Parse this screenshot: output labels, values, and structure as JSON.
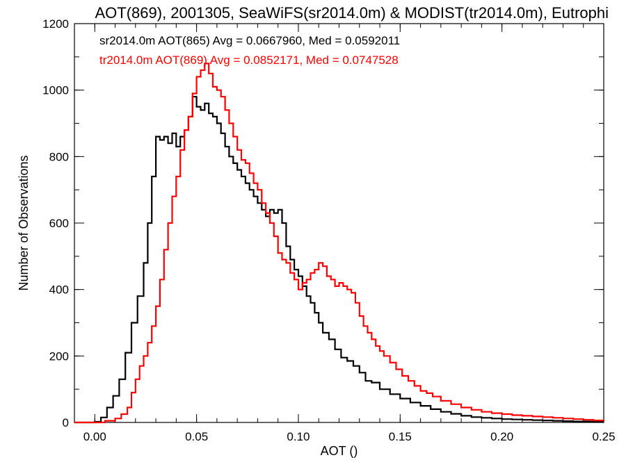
{
  "chart_data": {
    "type": "line",
    "title": "AOT(869), 2001305, SeaWiFS(sr2014.0m) & MODIST(tr2014.0m), Eutrophi",
    "xlabel": "AOT ()",
    "ylabel": "Number of Observations",
    "xlim": [
      -0.01,
      0.25
    ],
    "ylim": [
      0,
      1200
    ],
    "x_ticks": [
      0.0,
      0.05,
      0.1,
      0.15,
      0.2,
      0.25
    ],
    "x_tick_labels": [
      "0.00",
      "0.05",
      "0.10",
      "0.15",
      "0.20",
      "0.25"
    ],
    "y_ticks": [
      0,
      200,
      400,
      600,
      800,
      1000,
      1200
    ],
    "y_tick_labels": [
      "0",
      "200",
      "400",
      "600",
      "800",
      "1000",
      "1200"
    ],
    "grid": false,
    "annotations": [
      "sr2014.0m AOT(865) Avg = 0.0667960, Med = 0.0592011",
      "tr2014.0m AOT(869) Avg = 0.0852171, Med = 0.0747528"
    ],
    "series": [
      {
        "color": "#000000",
        "step": "histogram",
        "points": [
          [
            -0.01,
            0
          ],
          [
            0.0,
            2
          ],
          [
            0.003,
            15
          ],
          [
            0.006,
            45
          ],
          [
            0.009,
            80
          ],
          [
            0.012,
            130
          ],
          [
            0.015,
            210
          ],
          [
            0.018,
            300
          ],
          [
            0.021,
            380
          ],
          [
            0.024,
            480
          ],
          [
            0.026,
            600
          ],
          [
            0.028,
            740
          ],
          [
            0.03,
            860
          ],
          [
            0.032,
            850
          ],
          [
            0.034,
            860
          ],
          [
            0.036,
            840
          ],
          [
            0.038,
            870
          ],
          [
            0.04,
            830
          ],
          [
            0.042,
            860
          ],
          [
            0.044,
            880
          ],
          [
            0.046,
            920
          ],
          [
            0.048,
            980
          ],
          [
            0.05,
            950
          ],
          [
            0.052,
            940
          ],
          [
            0.054,
            960
          ],
          [
            0.056,
            930
          ],
          [
            0.058,
            920
          ],
          [
            0.06,
            900
          ],
          [
            0.062,
            870
          ],
          [
            0.064,
            830
          ],
          [
            0.066,
            800
          ],
          [
            0.068,
            780
          ],
          [
            0.07,
            760
          ],
          [
            0.072,
            740
          ],
          [
            0.074,
            720
          ],
          [
            0.076,
            700
          ],
          [
            0.078,
            680
          ],
          [
            0.08,
            660
          ],
          [
            0.082,
            640
          ],
          [
            0.084,
            620
          ],
          [
            0.086,
            640
          ],
          [
            0.088,
            630
          ],
          [
            0.09,
            640
          ],
          [
            0.092,
            600
          ],
          [
            0.094,
            530
          ],
          [
            0.096,
            490
          ],
          [
            0.098,
            460
          ],
          [
            0.1,
            440
          ],
          [
            0.102,
            410
          ],
          [
            0.104,
            380
          ],
          [
            0.106,
            360
          ],
          [
            0.108,
            330
          ],
          [
            0.11,
            300
          ],
          [
            0.112,
            270
          ],
          [
            0.115,
            250
          ],
          [
            0.118,
            220
          ],
          [
            0.121,
            195
          ],
          [
            0.124,
            185
          ],
          [
            0.127,
            170
          ],
          [
            0.13,
            150
          ],
          [
            0.133,
            125
          ],
          [
            0.136,
            120
          ],
          [
            0.14,
            100
          ],
          [
            0.145,
            85
          ],
          [
            0.15,
            72
          ],
          [
            0.155,
            60
          ],
          [
            0.16,
            50
          ],
          [
            0.165,
            40
          ],
          [
            0.17,
            32
          ],
          [
            0.175,
            26
          ],
          [
            0.18,
            20
          ],
          [
            0.185,
            16
          ],
          [
            0.19,
            14
          ],
          [
            0.195,
            12
          ],
          [
            0.2,
            10
          ],
          [
            0.205,
            9
          ],
          [
            0.21,
            8
          ],
          [
            0.215,
            7
          ],
          [
            0.22,
            6
          ],
          [
            0.225,
            5
          ],
          [
            0.23,
            4
          ],
          [
            0.235,
            3
          ],
          [
            0.24,
            3
          ],
          [
            0.245,
            2
          ],
          [
            0.25,
            2
          ]
        ]
      },
      {
        "color": "#ff0000",
        "step": "histogram",
        "points": [
          [
            -0.01,
            0
          ],
          [
            0.0,
            0
          ],
          [
            0.005,
            5
          ],
          [
            0.01,
            12
          ],
          [
            0.013,
            25
          ],
          [
            0.016,
            45
          ],
          [
            0.018,
            90
          ],
          [
            0.02,
            130
          ],
          [
            0.022,
            170
          ],
          [
            0.024,
            200
          ],
          [
            0.026,
            240
          ],
          [
            0.028,
            290
          ],
          [
            0.03,
            350
          ],
          [
            0.032,
            430
          ],
          [
            0.034,
            520
          ],
          [
            0.036,
            600
          ],
          [
            0.038,
            680
          ],
          [
            0.04,
            740
          ],
          [
            0.042,
            820
          ],
          [
            0.044,
            880
          ],
          [
            0.046,
            920
          ],
          [
            0.048,
            990
          ],
          [
            0.05,
            1040
          ],
          [
            0.052,
            1060
          ],
          [
            0.054,
            1080
          ],
          [
            0.056,
            1050
          ],
          [
            0.058,
            1010
          ],
          [
            0.06,
            1000
          ],
          [
            0.062,
            980
          ],
          [
            0.064,
            940
          ],
          [
            0.066,
            900
          ],
          [
            0.068,
            860
          ],
          [
            0.07,
            820
          ],
          [
            0.072,
            790
          ],
          [
            0.074,
            780
          ],
          [
            0.076,
            750
          ],
          [
            0.078,
            720
          ],
          [
            0.08,
            700
          ],
          [
            0.082,
            660
          ],
          [
            0.084,
            630
          ],
          [
            0.086,
            600
          ],
          [
            0.088,
            560
          ],
          [
            0.09,
            510
          ],
          [
            0.092,
            490
          ],
          [
            0.094,
            480
          ],
          [
            0.096,
            450
          ],
          [
            0.098,
            430
          ],
          [
            0.1,
            400
          ],
          [
            0.102,
            420
          ],
          [
            0.104,
            430
          ],
          [
            0.106,
            450
          ],
          [
            0.108,
            460
          ],
          [
            0.11,
            480
          ],
          [
            0.112,
            470
          ],
          [
            0.114,
            440
          ],
          [
            0.116,
            430
          ],
          [
            0.118,
            410
          ],
          [
            0.12,
            420
          ],
          [
            0.122,
            410
          ],
          [
            0.124,
            400
          ],
          [
            0.126,
            390
          ],
          [
            0.128,
            360
          ],
          [
            0.13,
            320
          ],
          [
            0.132,
            290
          ],
          [
            0.134,
            270
          ],
          [
            0.136,
            250
          ],
          [
            0.138,
            230
          ],
          [
            0.14,
            215
          ],
          [
            0.142,
            200
          ],
          [
            0.145,
            180
          ],
          [
            0.148,
            160
          ],
          [
            0.151,
            140
          ],
          [
            0.154,
            125
          ],
          [
            0.157,
            110
          ],
          [
            0.16,
            95
          ],
          [
            0.163,
            88
          ],
          [
            0.166,
            78
          ],
          [
            0.17,
            65
          ],
          [
            0.175,
            55
          ],
          [
            0.18,
            45
          ],
          [
            0.185,
            38
          ],
          [
            0.19,
            32
          ],
          [
            0.195,
            28
          ],
          [
            0.2,
            25
          ],
          [
            0.205,
            22
          ],
          [
            0.21,
            20
          ],
          [
            0.215,
            18
          ],
          [
            0.22,
            16
          ],
          [
            0.225,
            14
          ],
          [
            0.23,
            12
          ],
          [
            0.235,
            10
          ],
          [
            0.24,
            8
          ],
          [
            0.245,
            6
          ],
          [
            0.25,
            5
          ]
        ]
      }
    ]
  }
}
